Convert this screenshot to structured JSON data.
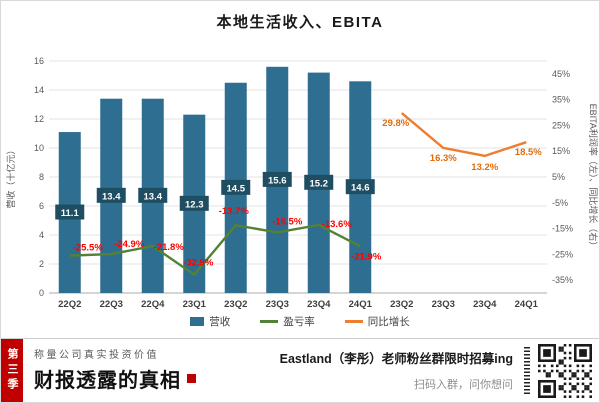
{
  "title": "本地生活收入、EBITA",
  "chart_data": {
    "type": "bar+line",
    "categories": [
      "22Q2",
      "22Q3",
      "22Q4",
      "23Q1",
      "23Q2",
      "23Q3",
      "23Q4",
      "24Q1",
      "23Q2",
      "23Q3",
      "23Q4",
      "24Q1"
    ],
    "left_axis": {
      "title": "营收（十亿元）",
      "range": [
        0,
        16
      ],
      "ticks": [
        16,
        14,
        12,
        10,
        8,
        6,
        4,
        2,
        0
      ]
    },
    "right_axis": {
      "title": "EBITA利润率（左）、同比增长（右）",
      "range": [
        -40,
        50
      ],
      "ticks": [
        "45%",
        "35%",
        "25%",
        "15%",
        "5%",
        "-5%",
        "-15%",
        "-25%",
        "-35%"
      ]
    },
    "series": [
      {
        "id": "revenue",
        "name": "营收",
        "type": "bar",
        "axis": "left",
        "color": "#2E6E91",
        "label_bg": "#1F4E63",
        "label_color": "#ffffff",
        "start_slot": 0,
        "values": [
          11.1,
          13.4,
          13.4,
          12.3,
          14.5,
          15.6,
          15.2,
          14.6
        ],
        "labels": [
          "11.1",
          "13.4",
          "13.4",
          "12.3",
          "14.5",
          "15.6",
          "15.2",
          "14.6"
        ]
      },
      {
        "id": "margin",
        "name": "盈亏率",
        "type": "line",
        "axis": "right",
        "color": "#538135",
        "label_color": "#FF0000",
        "start_slot": 0,
        "values": [
          -25.5,
          -24.9,
          -21.8,
          -32.9,
          -13.7,
          -16.5,
          -13.6,
          -21.9
        ],
        "labels": [
          "-25.5%",
          "-24.9%",
          "-21.8%",
          "-32.9%",
          "-13.7%",
          "-16.5%",
          "-13.6%",
          "-21.9%"
        ]
      },
      {
        "id": "yoy_growth",
        "name": "同比增长",
        "type": "line",
        "axis": "right",
        "color": "#ED7D31",
        "label_color": "#E36C09",
        "start_slot": 8,
        "values": [
          29.8,
          16.3,
          13.2,
          18.5
        ],
        "labels": [
          "29.8%",
          "16.3%",
          "13.2%",
          "18.5%"
        ]
      }
    ],
    "legend": [
      {
        "label": "营收",
        "swatch": "bar",
        "color": "#2E6E91"
      },
      {
        "label": "盈亏率",
        "swatch": "line",
        "color": "#538135"
      },
      {
        "label": "同比增长",
        "swatch": "line",
        "color": "#ED7D31"
      }
    ]
  },
  "footer": {
    "season_tag": "第三季",
    "tagline": "称量公司真实投资价值",
    "slogan": "财报透露的真相",
    "recruit_line": "Eastland（李彤）老师粉丝群限时招募ing",
    "scan_line": "扫码入群，问你想问"
  }
}
